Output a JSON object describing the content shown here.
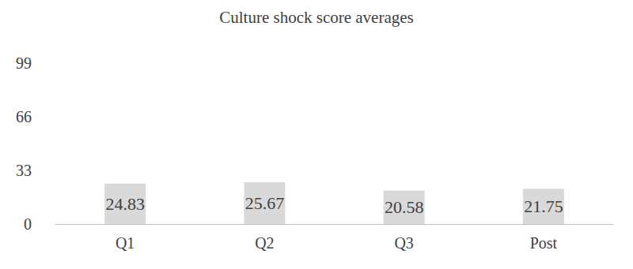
{
  "chart_data": {
    "type": "bar",
    "title": "Culture shock score averages",
    "categories": [
      "Q1",
      "Q2",
      "Q3",
      "Post"
    ],
    "values": [
      24.83,
      25.67,
      20.58,
      21.75
    ],
    "color": "#d9d9d9",
    "ylim": [
      0,
      99
    ],
    "yticks": [
      0,
      33,
      66,
      99
    ],
    "grid": false,
    "data_labels": true
  }
}
